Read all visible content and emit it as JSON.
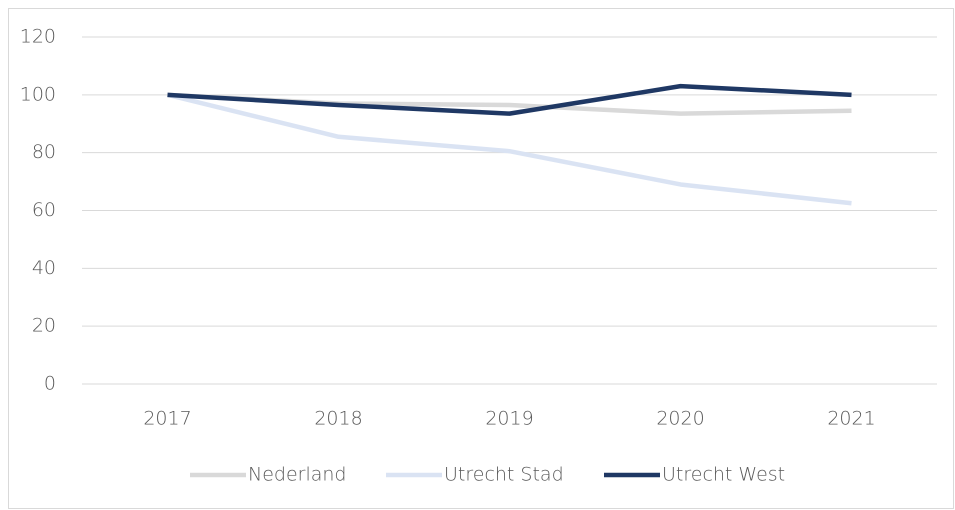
{
  "chart_data": {
    "type": "line",
    "categories": [
      "2017",
      "2018",
      "2019",
      "2020",
      "2021"
    ],
    "series": [
      {
        "name": "Nederland",
        "color": "#d9d9d9",
        "values": [
          100,
          97,
          96.5,
          93.5,
          94.5
        ]
      },
      {
        "name": "Utrecht Stad",
        "color": "#dae3f3",
        "values": [
          100,
          85.5,
          80.5,
          69,
          62.5
        ]
      },
      {
        "name": "Utrecht West",
        "color": "#1f3864",
        "values": [
          100,
          96.5,
          93.5,
          103,
          100
        ]
      }
    ],
    "ylim": [
      0,
      120
    ],
    "yticks": [
      0,
      20,
      40,
      60,
      80,
      100,
      120
    ],
    "grid": true,
    "legend": "bottom"
  }
}
